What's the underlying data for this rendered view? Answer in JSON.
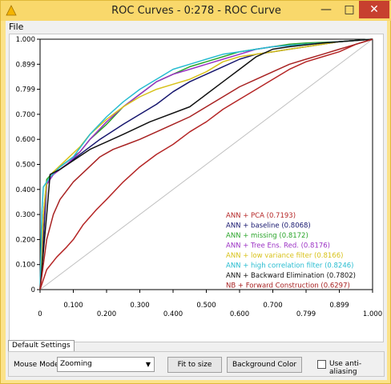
{
  "window": {
    "title": "ROC Curves - 0:278 - ROC Curve",
    "minimize": "—",
    "maximize": "□",
    "close": "✕"
  },
  "menu": {
    "file": "File"
  },
  "tabs": {
    "default": "Default Settings"
  },
  "controls": {
    "mouse_mode_label": "Mouse Mode",
    "mouse_mode_value": "Zooming",
    "fit_label": "Fit to size",
    "background_label": "Background Color",
    "anti_alias_label": "Use anti-aliasing",
    "anti_alias_checked": false
  },
  "colors": {
    "title_bar": "#f9d86b",
    "close_button": "#c7402f",
    "diagonal": "#c0c0c0"
  },
  "chart_data": {
    "type": "line",
    "xlim": [
      0,
      1
    ],
    "ylim": [
      0,
      1
    ],
    "x_ticks": [
      "0",
      "0.100",
      "0.200",
      "0.300",
      "0.400",
      "0.500",
      "0.600",
      "0.700",
      "0.799",
      "0.899",
      "1.000"
    ],
    "y_ticks": [
      "0",
      "0.100",
      "0.200",
      "0.300",
      "0.400",
      "0.500",
      "0.600",
      "0.700",
      "0.799",
      "0.899",
      "1.000"
    ],
    "legend_position": "bottom-right",
    "grid": false,
    "diagonal_reference": true,
    "series": [
      {
        "name": "ANN + PCA (0.7193)",
        "color": "#b52626",
        "points": [
          [
            0,
            0
          ],
          [
            0.02,
            0.08
          ],
          [
            0.05,
            0.13
          ],
          [
            0.08,
            0.17
          ],
          [
            0.1,
            0.2
          ],
          [
            0.13,
            0.26
          ],
          [
            0.17,
            0.32
          ],
          [
            0.2,
            0.36
          ],
          [
            0.25,
            0.43
          ],
          [
            0.3,
            0.49
          ],
          [
            0.35,
            0.54
          ],
          [
            0.4,
            0.58
          ],
          [
            0.45,
            0.63
          ],
          [
            0.5,
            0.67
          ],
          [
            0.55,
            0.72
          ],
          [
            0.6,
            0.76
          ],
          [
            0.65,
            0.8
          ],
          [
            0.7,
            0.84
          ],
          [
            0.75,
            0.88
          ],
          [
            0.8,
            0.91
          ],
          [
            0.85,
            0.93
          ],
          [
            0.9,
            0.95
          ],
          [
            0.95,
            0.98
          ],
          [
            1,
            1
          ]
        ]
      },
      {
        "name": "ANN + baseline (0.8068)",
        "color": "#16166e",
        "points": [
          [
            0,
            0
          ],
          [
            0.01,
            0.2
          ],
          [
            0.02,
            0.42
          ],
          [
            0.04,
            0.46
          ],
          [
            0.08,
            0.5
          ],
          [
            0.13,
            0.55
          ],
          [
            0.18,
            0.6
          ],
          [
            0.25,
            0.66
          ],
          [
            0.3,
            0.7
          ],
          [
            0.35,
            0.74
          ],
          [
            0.4,
            0.79
          ],
          [
            0.45,
            0.83
          ],
          [
            0.5,
            0.86
          ],
          [
            0.55,
            0.89
          ],
          [
            0.6,
            0.92
          ],
          [
            0.65,
            0.94
          ],
          [
            0.7,
            0.95
          ],
          [
            0.75,
            0.96
          ],
          [
            0.8,
            0.97
          ],
          [
            0.85,
            0.98
          ],
          [
            0.9,
            0.99
          ],
          [
            0.95,
            0.995
          ],
          [
            1,
            1
          ]
        ]
      },
      {
        "name": "ANN + missing (0.8172)",
        "color": "#2aa52a",
        "points": [
          [
            0,
            0
          ],
          [
            0.01,
            0.3
          ],
          [
            0.02,
            0.44
          ],
          [
            0.04,
            0.47
          ],
          [
            0.08,
            0.51
          ],
          [
            0.12,
            0.55
          ],
          [
            0.15,
            0.6
          ],
          [
            0.2,
            0.66
          ],
          [
            0.25,
            0.73
          ],
          [
            0.3,
            0.78
          ],
          [
            0.35,
            0.83
          ],
          [
            0.4,
            0.86
          ],
          [
            0.45,
            0.89
          ],
          [
            0.5,
            0.91
          ],
          [
            0.55,
            0.93
          ],
          [
            0.6,
            0.95
          ],
          [
            0.65,
            0.96
          ],
          [
            0.7,
            0.97
          ],
          [
            0.75,
            0.98
          ],
          [
            0.8,
            0.985
          ],
          [
            0.9,
            0.99
          ],
          [
            1,
            1
          ]
        ]
      },
      {
        "name": "ANN + Tree Ens. Red. (0.8176)",
        "color": "#9b31c4",
        "points": [
          [
            0,
            0
          ],
          [
            0.01,
            0.28
          ],
          [
            0.02,
            0.42
          ],
          [
            0.04,
            0.46
          ],
          [
            0.08,
            0.5
          ],
          [
            0.12,
            0.55
          ],
          [
            0.15,
            0.6
          ],
          [
            0.2,
            0.67
          ],
          [
            0.25,
            0.73
          ],
          [
            0.3,
            0.78
          ],
          [
            0.35,
            0.83
          ],
          [
            0.4,
            0.86
          ],
          [
            0.45,
            0.88
          ],
          [
            0.5,
            0.9
          ],
          [
            0.55,
            0.92
          ],
          [
            0.6,
            0.94
          ],
          [
            0.65,
            0.96
          ],
          [
            0.7,
            0.97
          ],
          [
            0.75,
            0.975
          ],
          [
            0.8,
            0.98
          ],
          [
            0.9,
            0.99
          ],
          [
            1,
            1
          ]
        ]
      },
      {
        "name": "ANN + low variance filter (0.8166)",
        "color": "#d8c21a",
        "points": [
          [
            0,
            0
          ],
          [
            0.01,
            0.3
          ],
          [
            0.02,
            0.43
          ],
          [
            0.04,
            0.47
          ],
          [
            0.08,
            0.52
          ],
          [
            0.12,
            0.57
          ],
          [
            0.15,
            0.62
          ],
          [
            0.2,
            0.68
          ],
          [
            0.25,
            0.73
          ],
          [
            0.3,
            0.77
          ],
          [
            0.35,
            0.8
          ],
          [
            0.4,
            0.82
          ],
          [
            0.45,
            0.84
          ],
          [
            0.5,
            0.87
          ],
          [
            0.55,
            0.91
          ],
          [
            0.6,
            0.93
          ],
          [
            0.65,
            0.94
          ],
          [
            0.7,
            0.95
          ],
          [
            0.75,
            0.96
          ],
          [
            0.8,
            0.97
          ],
          [
            0.9,
            0.99
          ],
          [
            1,
            1
          ]
        ]
      },
      {
        "name": "ANN + high correlation filter (0.8246)",
        "color": "#26bcd0",
        "points": [
          [
            0,
            0
          ],
          [
            0.005,
            0.3
          ],
          [
            0.01,
            0.41
          ],
          [
            0.03,
            0.45
          ],
          [
            0.06,
            0.49
          ],
          [
            0.1,
            0.53
          ],
          [
            0.15,
            0.62
          ],
          [
            0.2,
            0.69
          ],
          [
            0.25,
            0.75
          ],
          [
            0.3,
            0.8
          ],
          [
            0.35,
            0.84
          ],
          [
            0.4,
            0.88
          ],
          [
            0.45,
            0.9
          ],
          [
            0.5,
            0.92
          ],
          [
            0.55,
            0.94
          ],
          [
            0.6,
            0.95
          ],
          [
            0.65,
            0.96
          ],
          [
            0.7,
            0.97
          ],
          [
            0.75,
            0.975
          ],
          [
            0.8,
            0.98
          ],
          [
            0.9,
            0.99
          ],
          [
            1,
            1
          ]
        ]
      },
      {
        "name": "ANN + Backward Elimination (0.7802)",
        "color": "#111111",
        "points": [
          [
            0,
            0
          ],
          [
            0.01,
            0.15
          ],
          [
            0.02,
            0.3
          ],
          [
            0.03,
            0.46
          ],
          [
            0.06,
            0.48
          ],
          [
            0.15,
            0.56
          ],
          [
            0.25,
            0.62
          ],
          [
            0.33,
            0.67
          ],
          [
            0.45,
            0.73
          ],
          [
            0.5,
            0.78
          ],
          [
            0.55,
            0.83
          ],
          [
            0.6,
            0.88
          ],
          [
            0.65,
            0.93
          ],
          [
            0.7,
            0.96
          ],
          [
            0.75,
            0.97
          ],
          [
            0.85,
            0.985
          ],
          [
            1,
            1
          ]
        ]
      },
      {
        "name": "NB + Forward Construction (0.6297)",
        "color": "#a82222",
        "points": [
          [
            0,
            0
          ],
          [
            0.01,
            0.1
          ],
          [
            0.02,
            0.2
          ],
          [
            0.04,
            0.3
          ],
          [
            0.06,
            0.36
          ],
          [
            0.1,
            0.43
          ],
          [
            0.14,
            0.48
          ],
          [
            0.18,
            0.53
          ],
          [
            0.22,
            0.56
          ],
          [
            0.26,
            0.58
          ],
          [
            0.3,
            0.6
          ],
          [
            0.35,
            0.63
          ],
          [
            0.4,
            0.66
          ],
          [
            0.45,
            0.69
          ],
          [
            0.5,
            0.73
          ],
          [
            0.55,
            0.77
          ],
          [
            0.6,
            0.81
          ],
          [
            0.65,
            0.84
          ],
          [
            0.7,
            0.87
          ],
          [
            0.75,
            0.9
          ],
          [
            0.8,
            0.92
          ],
          [
            0.85,
            0.94
          ],
          [
            0.9,
            0.96
          ],
          [
            0.95,
            0.98
          ],
          [
            1,
            1
          ]
        ]
      }
    ]
  }
}
